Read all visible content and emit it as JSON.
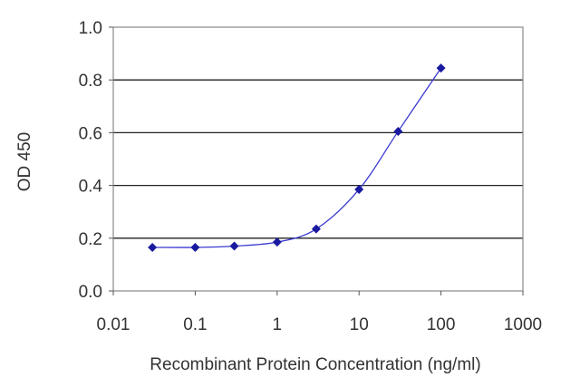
{
  "chart_data": {
    "type": "scatter",
    "title": "",
    "xlabel": "Recombinant Protein Concentration (ng/ml)",
    "ylabel": "OD 450",
    "xscale": "log",
    "xlim": [
      0.01,
      1000
    ],
    "ylim": [
      0.0,
      1.0
    ],
    "xticks": [
      "0.01",
      "0.1",
      "1",
      "10",
      "100",
      "1000"
    ],
    "yticks": [
      "0.0",
      "0.2",
      "0.4",
      "0.6",
      "0.8",
      "1.0"
    ],
    "grid": "horizontal",
    "legend": "none",
    "series": [
      {
        "x": [
          0.03,
          0.1,
          0.3,
          1,
          3,
          10,
          30,
          100
        ],
        "y": [
          0.165,
          0.165,
          0.17,
          0.185,
          0.235,
          0.385,
          0.605,
          0.845
        ],
        "marker": "diamond",
        "color": "#1a1aa0",
        "line": "smooth"
      }
    ]
  }
}
